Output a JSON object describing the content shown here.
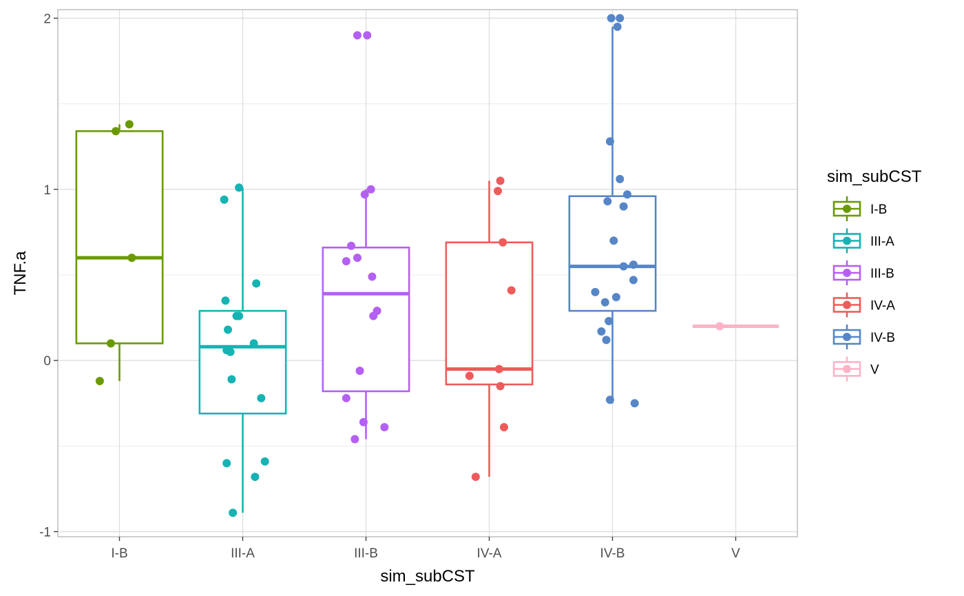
{
  "chart_data": {
    "type": "box",
    "xlabel": "sim_subCST",
    "ylabel": "TNF.a",
    "categories": [
      "I-B",
      "III-A",
      "III-B",
      "IV-A",
      "IV-B",
      "V"
    ],
    "ylim": [
      -1.03,
      2.05
    ],
    "y_ticks": [
      -1,
      0,
      1,
      2
    ],
    "y_tick_labels": [
      "-1",
      "0",
      "1",
      "2"
    ],
    "grid": true,
    "legend": {
      "title": "sim_subCST",
      "position": "right"
    },
    "colors": {
      "I-B": "#6a9a00",
      "III-A": "#16b3b3",
      "III-B": "#b460f2",
      "IV-A": "#ee5b5b",
      "IV-B": "#5686c6",
      "V": "#fcb3c6"
    },
    "boxes": [
      {
        "category": "I-B",
        "q1": 0.1,
        "median": 0.6,
        "q3": 1.34,
        "whisker_low": -0.12,
        "whisker_high": 1.38
      },
      {
        "category": "III-A",
        "q1": -0.31,
        "median": 0.08,
        "q3": 0.29,
        "whisker_low": -0.89,
        "whisker_high": 1.01
      },
      {
        "category": "III-B",
        "q1": -0.18,
        "median": 0.39,
        "q3": 0.66,
        "whisker_low": -0.46,
        "whisker_high": 1.0
      },
      {
        "category": "IV-A",
        "q1": -0.14,
        "median": -0.05,
        "q3": 0.69,
        "whisker_low": -0.68,
        "whisker_high": 1.05
      },
      {
        "category": "IV-B",
        "q1": 0.29,
        "median": 0.55,
        "q3": 0.96,
        "whisker_low": -0.25,
        "whisker_high": 1.95
      },
      {
        "category": "V",
        "q1": 0.2,
        "median": 0.2,
        "q3": 0.2,
        "whisker_low": 0.2,
        "whisker_high": 0.2
      }
    ],
    "points": [
      {
        "category": "I-B",
        "values": [
          1.38,
          1.34,
          0.6,
          0.1,
          -0.12
        ],
        "jitter": [
          0.08,
          -0.03,
          0.1,
          -0.07,
          -0.16
        ]
      },
      {
        "category": "III-A",
        "values": [
          1.01,
          0.94,
          0.45,
          0.35,
          0.26,
          0.26,
          0.18,
          0.1,
          0.06,
          0.05,
          -0.11,
          -0.22,
          -0.59,
          -0.6,
          -0.68,
          -0.89
        ],
        "jitter": [
          -0.03,
          -0.15,
          0.11,
          -0.14,
          -0.05,
          -0.03,
          -0.12,
          0.09,
          -0.13,
          -0.1,
          -0.09,
          0.15,
          0.18,
          -0.13,
          0.1,
          -0.08
        ]
      },
      {
        "category": "III-B",
        "values": [
          1.9,
          1.9,
          1.0,
          0.97,
          0.67,
          0.6,
          0.58,
          0.49,
          0.29,
          0.26,
          -0.06,
          -0.22,
          -0.36,
          -0.39,
          -0.46
        ],
        "jitter": [
          -0.07,
          0.01,
          0.04,
          -0.01,
          -0.12,
          -0.07,
          -0.16,
          0.05,
          0.09,
          0.06,
          -0.05,
          -0.16,
          -0.02,
          0.15,
          -0.09
        ]
      },
      {
        "category": "IV-A",
        "values": [
          1.05,
          0.99,
          0.69,
          0.41,
          -0.05,
          -0.09,
          -0.15,
          -0.39,
          -0.68
        ],
        "jitter": [
          0.09,
          0.07,
          0.11,
          0.18,
          0.08,
          -0.16,
          0.09,
          0.12,
          -0.11
        ]
      },
      {
        "category": "IV-B",
        "values": [
          2.0,
          2.0,
          1.95,
          1.28,
          1.06,
          0.97,
          0.93,
          0.9,
          0.7,
          0.56,
          0.55,
          0.47,
          0.4,
          0.37,
          0.34,
          0.23,
          0.17,
          0.12,
          -0.23,
          -0.25
        ],
        "jitter": [
          -0.01,
          0.06,
          0.04,
          -0.02,
          0.06,
          0.12,
          -0.04,
          0.09,
          0.01,
          0.17,
          0.09,
          0.17,
          -0.14,
          0.03,
          -0.06,
          -0.03,
          -0.09,
          -0.05,
          -0.02,
          0.18
        ]
      },
      {
        "category": "V",
        "values": [
          0.2
        ],
        "jitter": [
          -0.13
        ]
      }
    ]
  }
}
